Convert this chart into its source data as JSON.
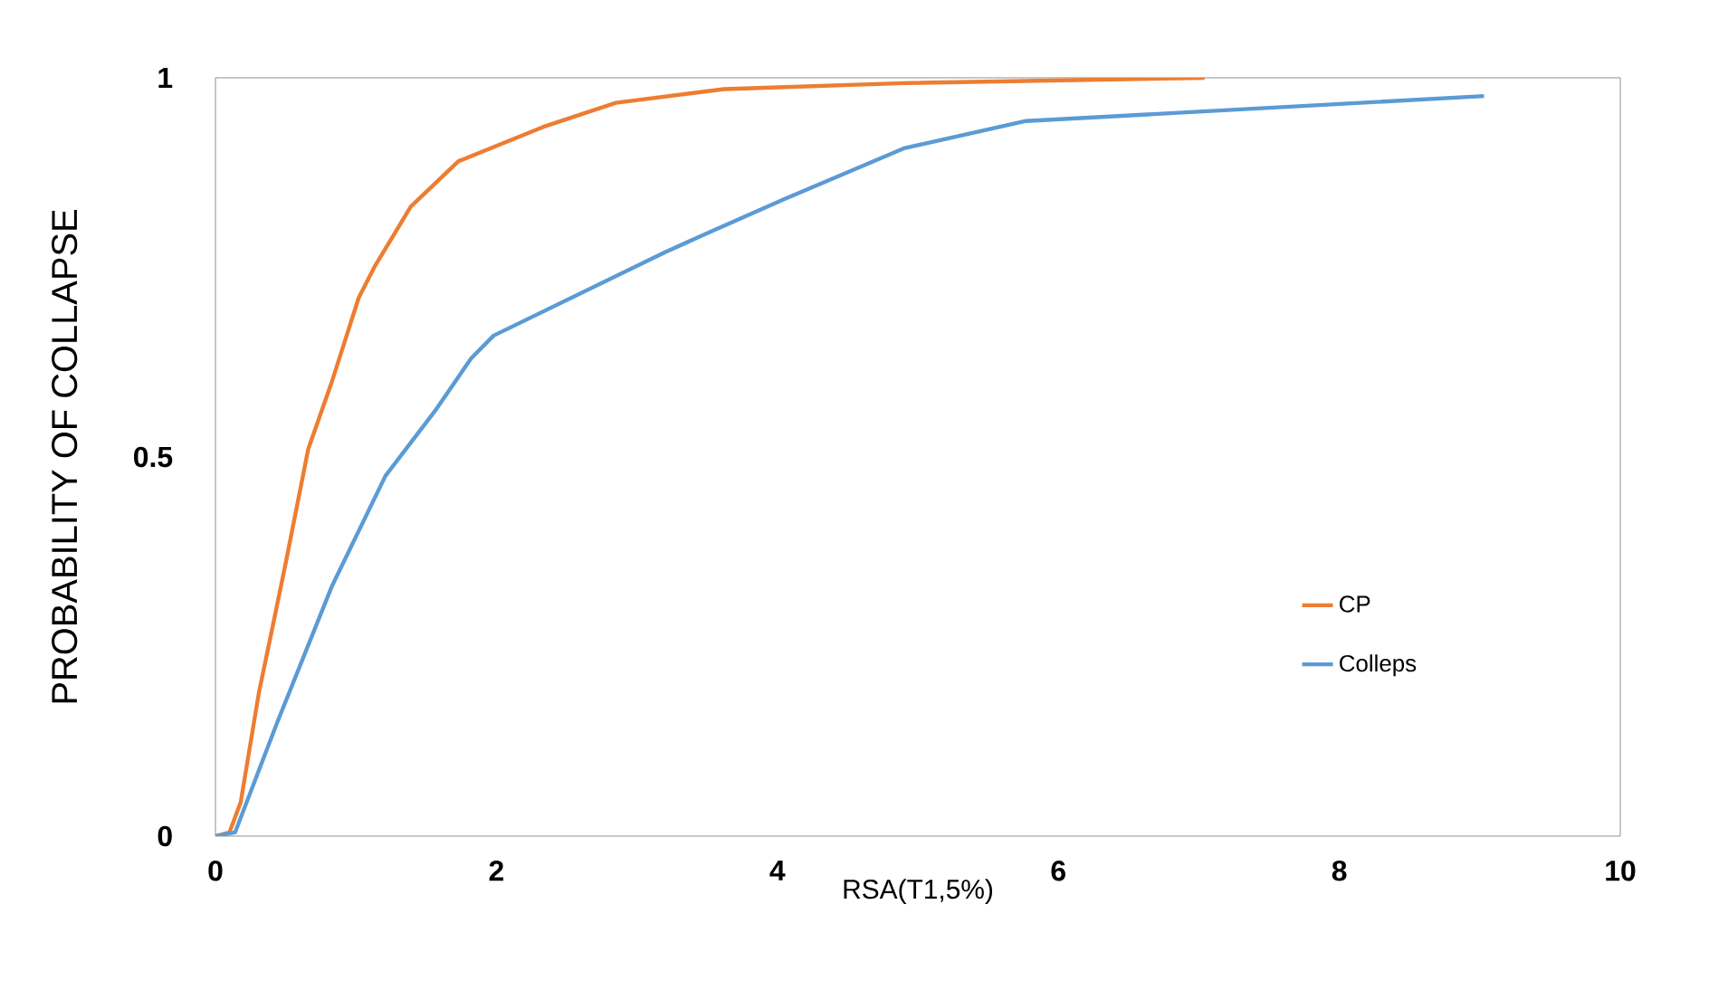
{
  "chart_data": {
    "type": "line",
    "xlabel": "RSA(T1,5%)",
    "ylabel": "PROBABILITY OF COLLAPSE",
    "xlim": [
      0,
      10
    ],
    "xticks": [
      0,
      2,
      4,
      6,
      8,
      10
    ],
    "ylim": [
      0,
      1
    ],
    "yticks": [
      0,
      0.5,
      1
    ],
    "grid": false,
    "legend": "right",
    "marker": "none",
    "line_style": "solid",
    "series": [
      {
        "name": "CP",
        "color": "#ed7d31",
        "x": [
          0,
          0.1,
          0.18,
          0.31,
          0.4,
          0.5,
          0.66,
          0.83,
          1.02,
          1.13,
          1.39,
          1.73,
          2.33,
          2.85,
          3.62,
          4.9,
          7.04
        ],
        "values": [
          0,
          0.005,
          0.045,
          0.19,
          0.27,
          0.36,
          0.51,
          0.6,
          0.71,
          0.75,
          0.83,
          0.89,
          0.935,
          0.967,
          0.985,
          0.993,
          1
        ]
      },
      {
        "name": "Colleps",
        "color": "#5b9bd5",
        "x": [
          0,
          0.14,
          0.44,
          0.83,
          1.21,
          1.56,
          1.82,
          1.98,
          3.2,
          3.62,
          4.05,
          4.9,
          5.77,
          6.97,
          9.03
        ],
        "values": [
          0,
          0.005,
          0.15,
          0.33,
          0.475,
          0.56,
          0.63,
          0.66,
          0.77,
          0.805,
          0.84,
          0.907,
          0.943,
          0.955,
          0.976
        ]
      }
    ]
  }
}
